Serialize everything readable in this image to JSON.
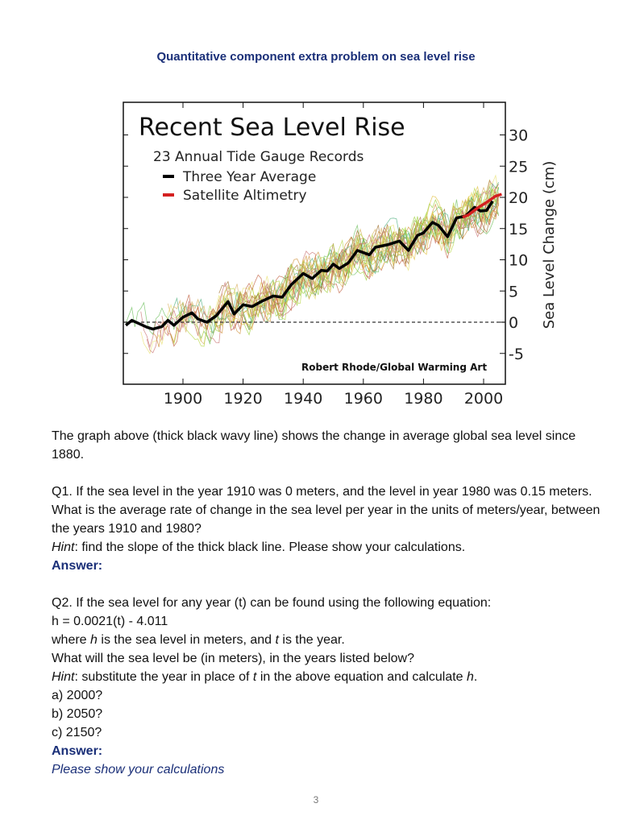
{
  "title": "Quantitative component extra problem on sea level rise",
  "chart_data": {
    "type": "line",
    "title": "Recent Sea Level Rise",
    "subtitle": "23 Annual Tide Gauge Records",
    "ylabel": "Sea Level Change (cm)",
    "xlabel": "",
    "xlim": [
      1880,
      2008
    ],
    "ylim": [
      -8,
      36
    ],
    "x_ticks": [
      1900,
      1920,
      1940,
      1960,
      1980,
      2000
    ],
    "y_ticks": [
      -5,
      0,
      5,
      10,
      15,
      20,
      25,
      30
    ],
    "y_axis_side": "right",
    "grid": false,
    "zero_line": "dashed",
    "legend_placement": "top-left",
    "credit": "Robert Rhode/Global Warming Art",
    "series": [
      {
        "name": "Three Year Average",
        "color": "#000000",
        "x": [
          1881,
          1883,
          1888,
          1890,
          1893,
          1895,
          1897,
          1900,
          1903,
          1905,
          1908,
          1911,
          1915,
          1917,
          1920,
          1923,
          1926,
          1930,
          1933,
          1936,
          1940,
          1943,
          1946,
          1948,
          1950,
          1952,
          1955,
          1958,
          1962,
          1964,
          1968,
          1972,
          1975,
          1978,
          1980,
          1983,
          1985,
          1988,
          1991,
          1994,
          1997,
          1999,
          2001,
          2003
        ],
        "y": [
          -0.5,
          0.3,
          -0.8,
          -1.1,
          -0.7,
          0.3,
          -0.5,
          0.8,
          1.5,
          0.5,
          0,
          1,
          3.3,
          1.3,
          2.8,
          2.5,
          3.3,
          4.2,
          4,
          6,
          7.8,
          7,
          8.3,
          8.2,
          9.3,
          8.6,
          9.5,
          11.5,
          10.8,
          12,
          12.4,
          13,
          11.5,
          13.9,
          14.3,
          16,
          15.5,
          13.7,
          16.7,
          17,
          18.4,
          17.8,
          17.9,
          19.4
        ]
      },
      {
        "name": "Satellite Altimetry",
        "color": "#d42020",
        "x": [
          1993,
          1995,
          1998,
          2001,
          2004,
          2006
        ],
        "y": [
          16.8,
          17.2,
          18.3,
          19.2,
          20.2,
          20.5
        ]
      }
    ]
  },
  "body": {
    "intro": "The graph above (thick black wavy line) shows the change in average global sea level since 1880.",
    "q1": "Q1. If the sea level in the year 1910 was 0 meters, and the level in year 1980 was 0.15 meters. What is the average rate of change in the sea level per year in the units of meters/year, between the years 1910 and 1980?",
    "q1_hint_label": "Hint",
    "q1_hint": ": find the slope of the thick black line. Please show your calculations.",
    "answer_label": "Answer:",
    "q2": "Q2. If the sea level for any year (t) can be found using the following equation:",
    "equation": "h = 0.0021(t) - 4.011",
    "where_1": "where ",
    "where_h": "h",
    "where_2": " is the sea level in meters, and ",
    "where_t": "t",
    "where_3": " is the year.",
    "q2_ask": "What will the sea level be (in meters), in the years listed below?",
    "q2_hint_label": "Hint",
    "q2_hint_1": ": substitute the year in place of ",
    "q2_hint_t": "t",
    "q2_hint_2": " in the above equation and calculate ",
    "q2_hint_h": "h",
    "q2_hint_3": ".",
    "items": [
      "a) 2000?",
      "b) 2050?",
      "c) 2150?"
    ],
    "answer2_label": "Answer:",
    "note": "Please show your calculations"
  },
  "page_number": "3"
}
